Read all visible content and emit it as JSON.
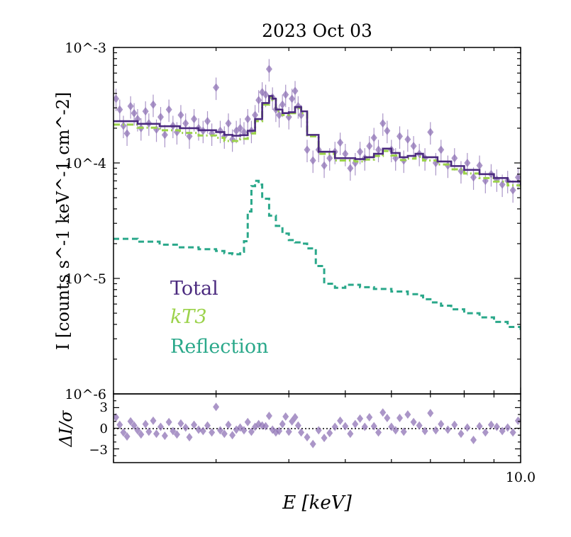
{
  "chart_data": [
    {
      "type": "line",
      "panel": "spectrum",
      "title": "2023 Oct 03",
      "ylabel": "I [counts s^-1 keV^-1 cm^-2]",
      "yscale": "log",
      "xscale": "log",
      "xlim": [
        2.0,
        10.0
      ],
      "ylim": [
        1e-06,
        0.001
      ],
      "y_tick_labels": [
        "10^-3",
        "10^-4",
        "10^-5",
        "10^-6"
      ],
      "legend": [
        "Total",
        "kT3",
        "Reflection"
      ],
      "colors": {
        "total": "#4b2a7f",
        "kt3": "#9bd24a",
        "reflection": "#2aa88a",
        "data": "#8f73b6"
      },
      "series": [
        {
          "name": "Total",
          "style": "solid",
          "x": [
            2.0,
            2.2,
            2.4,
            2.6,
            2.8,
            3.0,
            3.1,
            3.2,
            3.3,
            3.4,
            3.5,
            3.6,
            3.7,
            3.75,
            3.8,
            3.9,
            4.0,
            4.1,
            4.2,
            4.3,
            4.5,
            4.8,
            5.2,
            5.4,
            5.6,
            5.8,
            6.0,
            6.2,
            6.4,
            6.6,
            6.8,
            7.2,
            7.6,
            8.0,
            8.5,
            9.0,
            9.5,
            10.0
          ],
          "y": [
            0.00023,
            0.000218,
            0.000208,
            0.0002,
            0.000192,
            0.000185,
            0.000175,
            0.000172,
            0.000174,
            0.00019,
            0.00024,
            0.00033,
            0.00038,
            0.00036,
            0.00029,
            0.00027,
            0.000275,
            0.000305,
            0.00028,
            0.000175,
            0.000125,
            0.00011,
            0.000108,
            0.000112,
            0.00012,
            0.000133,
            0.000122,
            0.000112,
            0.000115,
            0.00012,
            0.000112,
            0.000103,
            9.4e-05,
            8.7e-05,
            8e-05,
            7.4e-05,
            6.9e-05,
            6.4e-05
          ]
        },
        {
          "name": "kT3",
          "style": "dashdot",
          "x": [
            2.0,
            2.2,
            2.4,
            2.6,
            2.8,
            3.0,
            3.1,
            3.2,
            3.3,
            3.4,
            3.5,
            3.6,
            3.7,
            3.75,
            3.8,
            3.9,
            4.0,
            4.1,
            4.2,
            4.3,
            4.5,
            4.8,
            5.2,
            5.4,
            5.6,
            5.8,
            6.0,
            6.2,
            6.4,
            6.6,
            6.8,
            7.2,
            7.6,
            8.0,
            8.5,
            9.0,
            9.5,
            10.0
          ],
          "y": [
            0.000215,
            0.000202,
            0.000192,
            0.000182,
            0.000173,
            0.000165,
            0.000155,
            0.000155,
            0.000162,
            0.00018,
            0.00023,
            0.00032,
            0.00037,
            0.00035,
            0.00028,
            0.00026,
            0.00027,
            0.0003,
            0.00027,
            0.00017,
            0.00012,
            0.000105,
            0.000103,
            0.000107,
            0.000115,
            0.000127,
            0.000116,
            0.000106,
            0.000109,
            0.000113,
            0.000105,
            9.7e-05,
            8.8e-05,
            8.1e-05,
            7.4e-05,
            6.9e-05,
            6.4e-05,
            6e-05
          ]
        },
        {
          "name": "Reflection",
          "style": "dashed",
          "x": [
            2.0,
            2.2,
            2.4,
            2.6,
            2.8,
            3.0,
            3.1,
            3.2,
            3.3,
            3.35,
            3.4,
            3.45,
            3.5,
            3.55,
            3.6,
            3.7,
            3.8,
            3.9,
            4.0,
            4.1,
            4.2,
            4.3,
            4.45,
            4.6,
            4.8,
            5.0,
            5.3,
            5.6,
            6.0,
            6.4,
            6.7,
            6.8,
            7.0,
            7.3,
            7.6,
            8.0,
            8.5,
            9.0,
            9.5,
            10.0
          ],
          "y": [
            2.2e-05,
            2.08e-05,
            1.96e-05,
            1.86e-05,
            1.79e-05,
            1.73e-05,
            1.65e-05,
            1.62e-05,
            1.7e-05,
            2.1e-05,
            3.8e-05,
            6.3e-05,
            7e-05,
            6.5e-05,
            4.9e-05,
            3.5e-05,
            2.85e-05,
            2.45e-05,
            2.15e-05,
            2.05e-05,
            2e-05,
            1.82e-05,
            1.28e-05,
            9e-06,
            8.3e-06,
            8.8e-06,
            8.4e-06,
            8.1e-06,
            7.7e-06,
            7.3e-06,
            7.1e-06,
            6.6e-06,
            6.2e-06,
            5.8e-06,
            5.4e-06,
            5e-06,
            4.6e-06,
            4.2e-06,
            3.8e-06,
            3.5e-06
          ]
        }
      ],
      "data_points": {
        "x": [
          2.02,
          2.05,
          2.08,
          2.11,
          2.14,
          2.17,
          2.2,
          2.23,
          2.27,
          2.3,
          2.34,
          2.37,
          2.41,
          2.45,
          2.49,
          2.53,
          2.57,
          2.61,
          2.66,
          2.7,
          2.75,
          2.8,
          2.85,
          2.9,
          2.95,
          3.0,
          3.05,
          3.1,
          3.15,
          3.2,
          3.25,
          3.3,
          3.35,
          3.4,
          3.45,
          3.5,
          3.55,
          3.6,
          3.65,
          3.7,
          3.75,
          3.8,
          3.85,
          3.9,
          3.95,
          4.0,
          4.05,
          4.1,
          4.15,
          4.2,
          4.3,
          4.4,
          4.5,
          4.6,
          4.7,
          4.8,
          4.9,
          5.0,
          5.1,
          5.2,
          5.3,
          5.4,
          5.5,
          5.6,
          5.7,
          5.8,
          5.9,
          6.0,
          6.1,
          6.2,
          6.3,
          6.4,
          6.55,
          6.7,
          6.85,
          7.0,
          7.15,
          7.3,
          7.5,
          7.7,
          7.9,
          8.1,
          8.3,
          8.5,
          8.7,
          8.9,
          9.1,
          9.3,
          9.5,
          9.7,
          9.9
        ],
        "y": [
          0.00036,
          0.00029,
          0.00021,
          0.00018,
          0.00031,
          0.00027,
          0.00024,
          0.0002,
          0.00028,
          0.00022,
          0.00032,
          0.000195,
          0.00025,
          0.000175,
          0.00029,
          0.00021,
          0.000185,
          0.00026,
          0.00022,
          0.00017,
          0.00024,
          0.0002,
          0.00019,
          0.00023,
          0.00018,
          0.00045,
          0.00019,
          0.00017,
          0.00022,
          0.00016,
          0.00019,
          0.0002,
          0.000185,
          0.00024,
          0.00019,
          0.00026,
          0.00035,
          0.00041,
          0.00039,
          0.00065,
          0.00037,
          0.00029,
          0.00026,
          0.00032,
          0.00039,
          0.00025,
          0.00036,
          0.00042,
          0.00031,
          0.00026,
          0.00013,
          0.000105,
          0.00013,
          9.5e-05,
          0.00011,
          0.000125,
          0.00015,
          0.00012,
          9e-05,
          0.0001,
          0.000125,
          0.00011,
          0.00014,
          0.000165,
          0.00013,
          0.00022,
          0.00019,
          0.00013,
          0.00011,
          0.00017,
          0.000105,
          0.00016,
          0.00014,
          0.00012,
          0.00011,
          0.000185,
          0.0001,
          0.00013,
          9.5e-05,
          0.00011,
          8.5e-05,
          0.0001,
          7.5e-05,
          9.5e-05,
          7e-05,
          8e-05,
          7.2e-05,
          6.5e-05,
          7e-05,
          5.8e-05,
          7.5e-05
        ]
      }
    },
    {
      "type": "scatter",
      "panel": "residuals",
      "xlabel": "E [keV]",
      "ylabel": "ΔI/σ",
      "xscale": "log",
      "xlim": [
        2.0,
        10.0
      ],
      "ylim": [
        -5,
        5
      ],
      "y_tick_labels": [
        "3",
        "0",
        "−3"
      ],
      "x_tick_labels": [
        "10.0"
      ],
      "reference_line": 0,
      "data_points": {
        "x": [
          2.02,
          2.05,
          2.08,
          2.11,
          2.14,
          2.17,
          2.2,
          2.23,
          2.27,
          2.3,
          2.34,
          2.37,
          2.41,
          2.45,
          2.49,
          2.53,
          2.57,
          2.61,
          2.66,
          2.7,
          2.75,
          2.8,
          2.85,
          2.9,
          2.95,
          3.0,
          3.05,
          3.1,
          3.15,
          3.2,
          3.25,
          3.3,
          3.35,
          3.4,
          3.45,
          3.5,
          3.55,
          3.6,
          3.65,
          3.7,
          3.75,
          3.8,
          3.85,
          3.9,
          3.95,
          4.0,
          4.05,
          4.1,
          4.15,
          4.2,
          4.3,
          4.4,
          4.5,
          4.6,
          4.7,
          4.8,
          4.9,
          5.0,
          5.1,
          5.2,
          5.3,
          5.4,
          5.5,
          5.6,
          5.7,
          5.8,
          5.9,
          6.0,
          6.1,
          6.2,
          6.3,
          6.4,
          6.55,
          6.7,
          6.85,
          7.0,
          7.15,
          7.3,
          7.5,
          7.7,
          7.9,
          8.1,
          8.3,
          8.5,
          8.7,
          8.9,
          9.1,
          9.3,
          9.5,
          9.7,
          9.9
        ],
        "y": [
          1.6,
          0.5,
          -0.6,
          -1.2,
          1.0,
          0.4,
          -0.3,
          -0.9,
          0.6,
          -0.5,
          1.1,
          -0.8,
          0.2,
          -1.1,
          0.9,
          -0.4,
          -0.9,
          0.7,
          0.1,
          -1.3,
          0.5,
          -0.2,
          -0.4,
          0.4,
          -0.6,
          3.1,
          -0.3,
          -0.8,
          0.5,
          -1.0,
          -0.2,
          0.1,
          -0.3,
          0.9,
          -0.5,
          0.2,
          0.6,
          0.4,
          0.3,
          1.8,
          -0.2,
          -0.6,
          -0.4,
          0.6,
          1.7,
          -0.5,
          1.0,
          1.6,
          0.4,
          -0.6,
          -1.3,
          -2.3,
          -0.3,
          -1.4,
          -0.7,
          0.2,
          1.1,
          0.3,
          -0.8,
          0.6,
          1.4,
          0.2,
          1.6,
          0.3,
          -0.6,
          2.3,
          1.5,
          0.2,
          -0.3,
          1.5,
          -0.5,
          2.0,
          0.9,
          0.4,
          -0.4,
          2.2,
          -0.3,
          0.6,
          -0.2,
          0.5,
          -0.8,
          0.1,
          -1.7,
          0.3,
          -0.6,
          0.5,
          0.2,
          -0.4,
          0.1,
          -0.6,
          1.1
        ]
      }
    }
  ]
}
